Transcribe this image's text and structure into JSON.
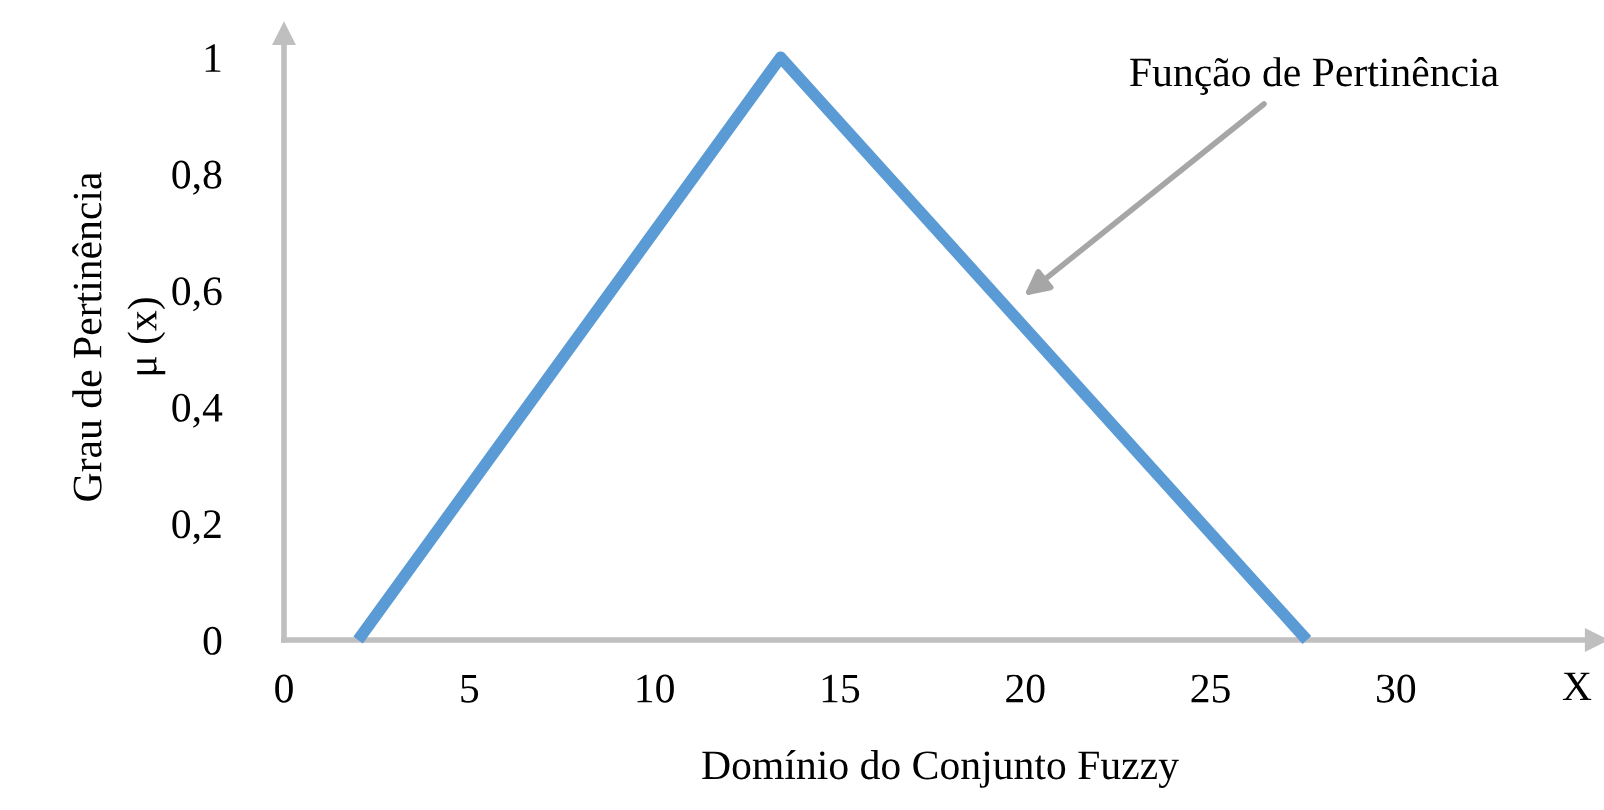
{
  "chart_data": {
    "type": "line",
    "xlabel": "Domínio do Conjunto Fuzzy",
    "ylabel": "Grau de Pertinência\nμ (x)",
    "series": [
      {
        "color": "#5b9bd5",
        "x": [
          2,
          13.4,
          27.6
        ],
        "values": [
          0,
          1,
          0
        ]
      }
    ],
    "xlim": [
      0,
      35.4
    ],
    "ylim": [
      0,
      1.04
    ],
    "xticks": [
      0,
      5,
      10,
      15,
      20,
      25,
      30
    ],
    "yticks": [
      0,
      {
        "value": 0.2,
        "label": "0,2"
      },
      {
        "value": 0.4,
        "label": "0,4"
      },
      {
        "value": 0.6,
        "label": "0,6"
      },
      {
        "value": 0.8,
        "label": "0,8"
      },
      1
    ],
    "annotations": [
      "Função de Pertinência",
      "X"
    ],
    "grid": false,
    "legend": false,
    "marker": "none",
    "line_style": "solid"
  }
}
